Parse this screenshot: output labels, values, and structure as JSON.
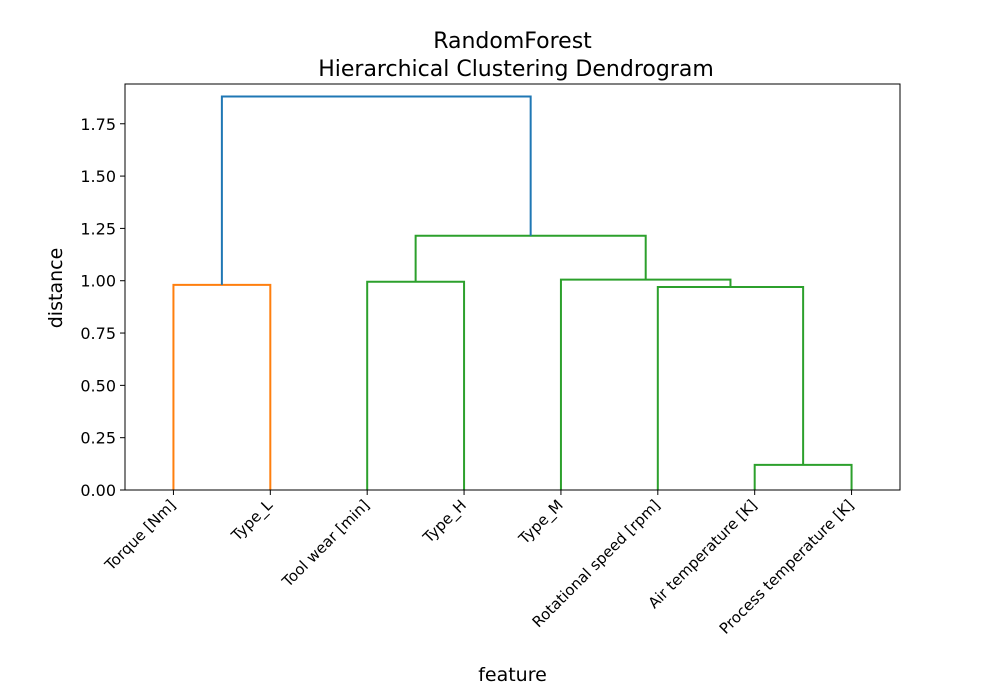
{
  "chart_data": {
    "type": "dendrogram",
    "title": "RandomForest",
    "subtitle": "Hierarchical Clustering Dendrogram",
    "xlabel": "feature",
    "ylabel": "distance",
    "ylim": [
      0,
      1.94
    ],
    "yticks": [
      "0.00",
      "0.25",
      "0.50",
      "0.75",
      "1.00",
      "1.25",
      "1.50",
      "1.75"
    ],
    "leaves": [
      "Torque [Nm]",
      "Type_L",
      "Tool wear [min]",
      "Type_H",
      "Type_M",
      "Rotational speed [rpm]",
      "Air temperature [K]",
      "Process temperature [K]"
    ],
    "links": [
      {
        "children": [
          0,
          1
        ],
        "height": 0.98,
        "color": "#ff7f0e"
      },
      {
        "children": [
          2,
          3
        ],
        "height": 0.995,
        "color": "#2ca02c"
      },
      {
        "children": [
          6,
          7
        ],
        "height": 0.12,
        "color": "#2ca02c"
      },
      {
        "children": [
          5,
          10
        ],
        "height": 0.97,
        "color": "#2ca02c"
      },
      {
        "children": [
          4,
          11
        ],
        "height": 1.005,
        "color": "#2ca02c"
      },
      {
        "children": [
          9,
          12
        ],
        "height": 1.215,
        "color": "#2ca02c"
      },
      {
        "children": [
          8,
          13
        ],
        "height": 1.88,
        "color": "#1f77b4"
      }
    ],
    "grid": false,
    "legend": "none"
  }
}
